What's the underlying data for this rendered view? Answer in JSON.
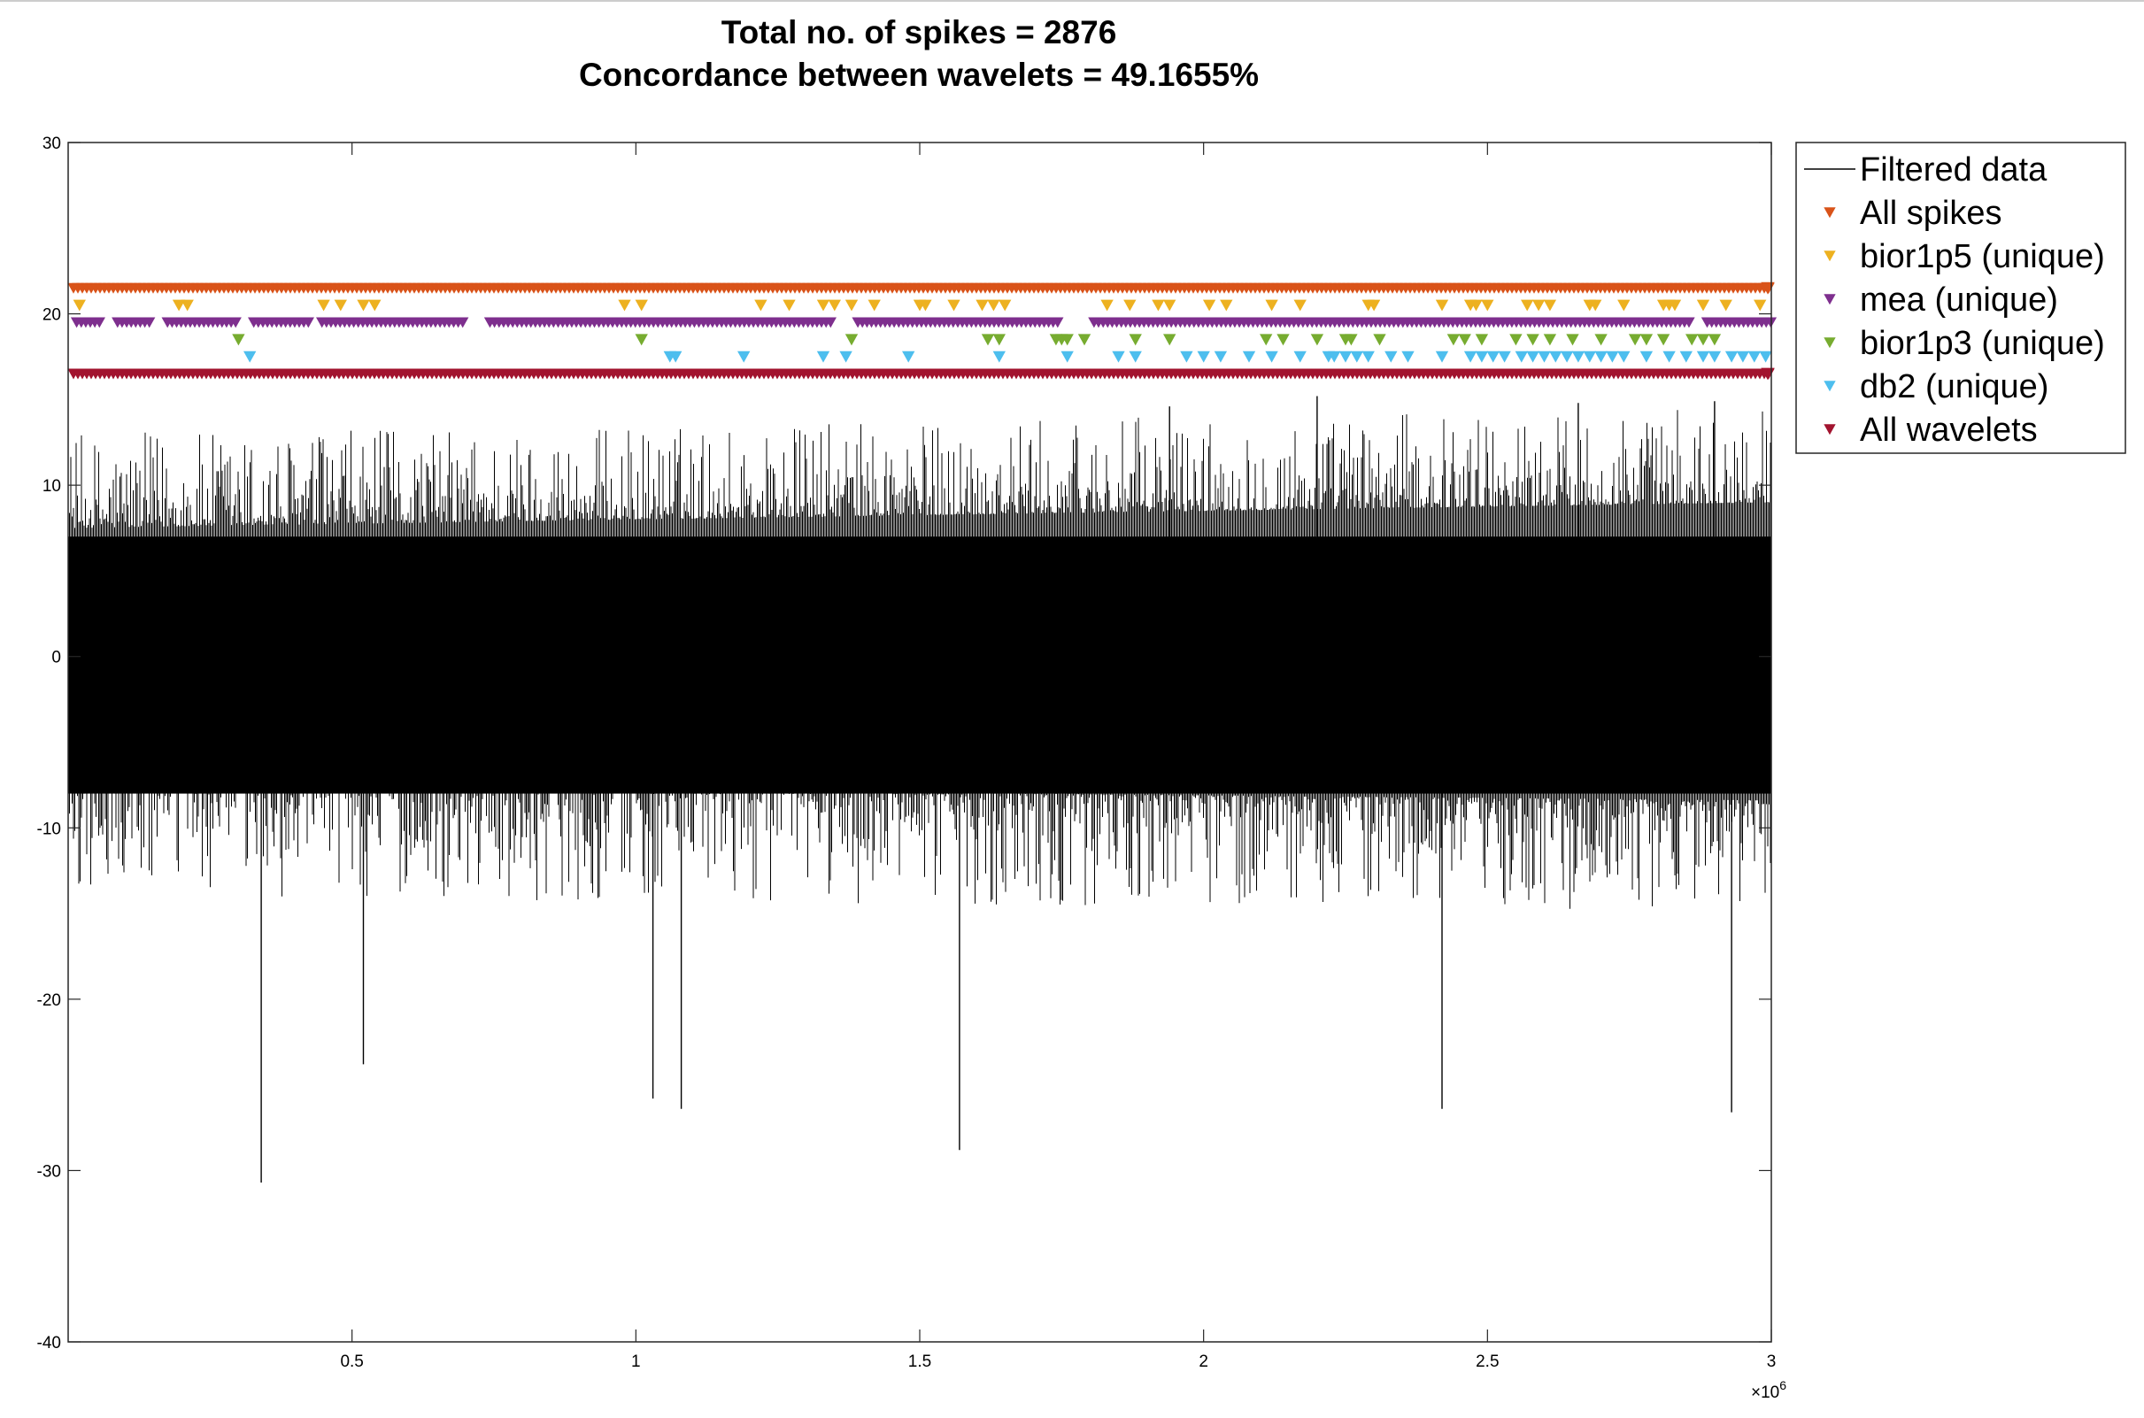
{
  "chart_data": {
    "type": "line",
    "title": "Total no. of spikes = 2876",
    "subtitle": "Concordance between wavelets = 49.1655%",
    "xlabel": "",
    "ylabel": "",
    "xlim": [
      0,
      3000000
    ],
    "ylim": [
      -40,
      30
    ],
    "x_exponent_label": "×10",
    "x_exponent_power": "6",
    "x_ticks": [
      {
        "value": 500000,
        "label": "0.5"
      },
      {
        "value": 1000000,
        "label": "1"
      },
      {
        "value": 1500000,
        "label": "1.5"
      },
      {
        "value": 2000000,
        "label": "2"
      },
      {
        "value": 2500000,
        "label": "2.5"
      },
      {
        "value": 3000000,
        "label": "3"
      }
    ],
    "y_ticks": [
      {
        "value": 30,
        "label": "30"
      },
      {
        "value": 20,
        "label": "20"
      },
      {
        "value": 10,
        "label": "10"
      },
      {
        "value": 0,
        "label": "0"
      },
      {
        "value": -10,
        "label": "-10"
      },
      {
        "value": -20,
        "label": "-20"
      },
      {
        "value": -30,
        "label": "-30"
      },
      {
        "value": -40,
        "label": "-40"
      }
    ],
    "grid": false,
    "legend_position": "outside-right-top",
    "signal": {
      "name": "Filtered data",
      "color": "#000000",
      "core_amplitude": 7,
      "noise_peaks": [
        {
          "x": 340000,
          "y": -30.7
        },
        {
          "x": 520000,
          "y": -23.8
        },
        {
          "x": 1030000,
          "y": -25.8
        },
        {
          "x": 1570000,
          "y": -28.8
        },
        {
          "x": 1080000,
          "y": -26.4
        },
        {
          "x": 2420000,
          "y": -26.4
        },
        {
          "x": 2930000,
          "y": -26.6
        },
        {
          "x": 2900000,
          "y": 14.9
        },
        {
          "x": 2200000,
          "y": 15.2
        },
        {
          "x": 1940000,
          "y": 14.6
        },
        {
          "x": 2660000,
          "y": 14.8
        }
      ]
    },
    "series": [
      {
        "name": "All spikes",
        "color": "#D95319",
        "y": 21.5,
        "style": "dense"
      },
      {
        "name": "bior1p5 (unique)",
        "color": "#EDB120",
        "y": 20.5,
        "style": "sparse",
        "x": [
          20000,
          195000,
          210000,
          450000,
          480000,
          520000,
          540000,
          980000,
          1010000,
          1220000,
          1270000,
          1330000,
          1350000,
          1380000,
          1420000,
          1500000,
          1510000,
          1560000,
          1610000,
          1630000,
          1650000,
          1830000,
          1870000,
          1920000,
          1940000,
          2010000,
          2040000,
          2120000,
          2170000,
          2290000,
          2300000,
          2420000,
          2470000,
          2480000,
          2500000,
          2570000,
          2590000,
          2610000,
          2680000,
          2690000,
          2740000,
          2810000,
          2820000,
          2830000,
          2880000,
          2920000,
          2980000
        ]
      },
      {
        "name": "mea (unique)",
        "color": "#7E2F8E",
        "y": 19.5,
        "style": "dense-gaps"
      },
      {
        "name": "bior1p3 (unique)",
        "color": "#77AC30",
        "y": 18.5,
        "style": "sparse",
        "x": [
          300000,
          1010000,
          1380000,
          1620000,
          1640000,
          1740000,
          1750000,
          1760000,
          1790000,
          1880000,
          1940000,
          2110000,
          2140000,
          2200000,
          2250000,
          2260000,
          2310000,
          2440000,
          2460000,
          2490000,
          2550000,
          2580000,
          2610000,
          2650000,
          2700000,
          2760000,
          2780000,
          2810000,
          2860000,
          2880000,
          2900000
        ]
      },
      {
        "name": "db2 (unique)",
        "color": "#4DBEEE",
        "y": 17.5,
        "style": "sparse",
        "x": [
          320000,
          1060000,
          1070000,
          1190000,
          1330000,
          1370000,
          1480000,
          1640000,
          1760000,
          1850000,
          1880000,
          1970000,
          2000000,
          2030000,
          2080000,
          2120000,
          2170000,
          2220000,
          2230000,
          2250000,
          2270000,
          2290000,
          2330000,
          2360000,
          2420000,
          2470000,
          2490000,
          2510000,
          2530000,
          2560000,
          2580000,
          2600000,
          2620000,
          2640000,
          2660000,
          2680000,
          2700000,
          2720000,
          2740000,
          2780000,
          2820000,
          2850000,
          2880000,
          2900000,
          2930000,
          2950000,
          2970000,
          2990000
        ]
      },
      {
        "name": "All wavelets",
        "color": "#A2142F",
        "y": 16.5,
        "style": "dense"
      }
    ]
  }
}
